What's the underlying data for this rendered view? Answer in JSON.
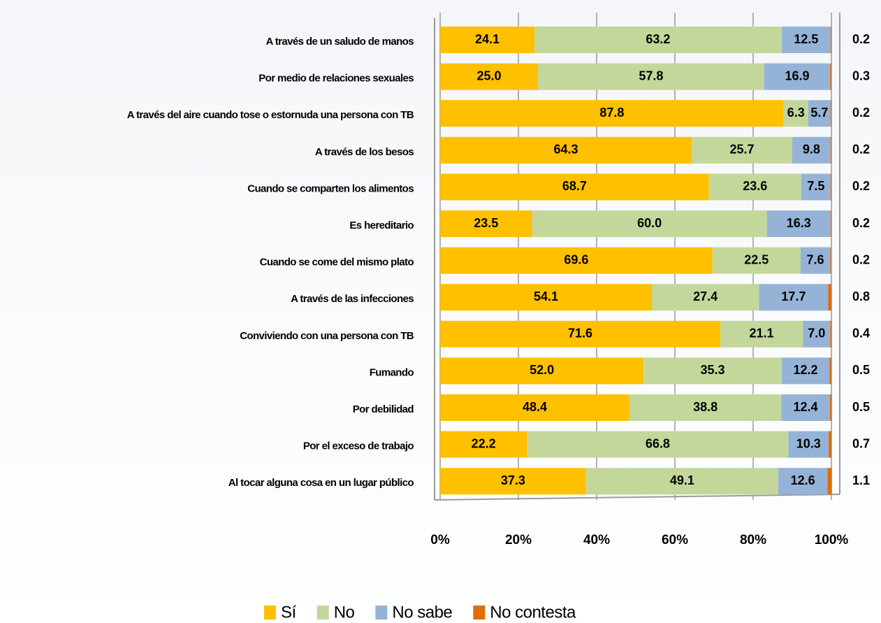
{
  "chart_data": {
    "type": "stacked_barh",
    "categories": [
      "A través de un saludo de manos",
      "Por medio de relaciones sexuales",
      "A través del aire cuando tose o estornuda una persona con TB",
      "A través de los besos",
      "Cuando se comparten los alimentos",
      "Es hereditario",
      "Cuando se come del mismo plato",
      "A través de las infecciones",
      "Conviviendo con una persona con TB",
      "Fumando",
      "Por debilidad",
      "Por el exceso de trabajo",
      "Al tocar alguna cosa en un lugar público"
    ],
    "series": [
      {
        "name": "Sí",
        "color": "#ffc000",
        "values": [
          24.1,
          25.0,
          87.8,
          64.3,
          68.7,
          23.5,
          69.6,
          54.1,
          71.6,
          52.0,
          48.4,
          22.2,
          37.3
        ],
        "value_labels": [
          "24.1",
          "25.0",
          "87.8",
          "64.3",
          "68.7",
          "23.5",
          "69.6",
          "54.1",
          "71.6",
          "52.0",
          "48.4",
          "22.2",
          "37.3"
        ]
      },
      {
        "name": "No",
        "color": "#c4d79b",
        "values": [
          63.2,
          57.8,
          6.3,
          25.7,
          23.6,
          60.0,
          22.5,
          27.4,
          21.1,
          35.3,
          38.8,
          66.8,
          49.1
        ],
        "value_labels": [
          "63.2",
          "57.8",
          "6.3",
          "25.7",
          "23.6",
          "60.0",
          "22.5",
          "27.4",
          "21.1",
          "35.3",
          "38.8",
          "66.8",
          "49.1"
        ]
      },
      {
        "name": "No sabe",
        "color": "#95b3d7",
        "values": [
          12.5,
          16.9,
          5.7,
          9.8,
          7.5,
          16.3,
          7.6,
          17.7,
          7.0,
          12.2,
          12.4,
          10.3,
          12.6
        ],
        "value_labels": [
          "12.5",
          "16.9",
          "5.7",
          "9.8",
          "7.5",
          "16.3",
          "7.6",
          "17.7",
          "7.0",
          "12.2",
          "12.4",
          "10.3",
          "12.6"
        ]
      },
      {
        "name": "No contesta",
        "color": "#e26b0a",
        "values": [
          0.2,
          0.3,
          0.2,
          0.2,
          0.2,
          0.2,
          0.2,
          0.8,
          0.4,
          0.5,
          0.5,
          0.7,
          1.1
        ],
        "value_labels": [
          "0.2",
          "0.3",
          "0.2",
          "0.2",
          "0.2",
          "0.2",
          "0.2",
          "0.8",
          "0.4",
          "0.5",
          "0.5",
          "0.7",
          "1.1"
        ]
      }
    ],
    "xlim": [
      0,
      100
    ],
    "xticks": [
      {
        "value": 0,
        "label": "0%"
      },
      {
        "value": 20,
        "label": "20%"
      },
      {
        "value": 40,
        "label": "40%"
      },
      {
        "value": 60,
        "label": "60%"
      },
      {
        "value": 80,
        "label": "80%"
      },
      {
        "value": 100,
        "label": "100%"
      }
    ],
    "grid": true,
    "legend": "bottom"
  }
}
